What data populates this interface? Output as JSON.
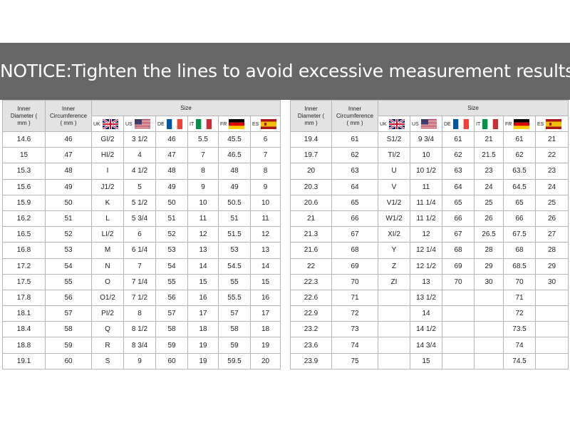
{
  "notice": "NOTICE:Tighten the lines to avoid excessive measurement results",
  "tables": [
    {
      "headers": {
        "inner_diameter": "Inner Diameter ( mm )",
        "inner_circumference": "Inner Circumference ( mm )",
        "size": "Size",
        "countries": [
          "UK",
          "US",
          "DE",
          "IT",
          "FR",
          "ES"
        ]
      },
      "rows": [
        [
          "14.6",
          "46",
          "GI/2",
          "3 1/2",
          "46",
          "5.5",
          "45.5",
          "6"
        ],
        [
          "15",
          "47",
          "HI/2",
          "4",
          "47",
          "7",
          "46.5",
          "7"
        ],
        [
          "15.3",
          "48",
          "I",
          "4 1/2",
          "48",
          "8",
          "48",
          "8"
        ],
        [
          "15.6",
          "49",
          "J1/2",
          "5",
          "49",
          "9",
          "49",
          "9"
        ],
        [
          "15.9",
          "50",
          "K",
          "5 1/2",
          "50",
          "10",
          "50.5",
          "10"
        ],
        [
          "16.2",
          "51",
          "L",
          "5 3/4",
          "51",
          "11",
          "51",
          "11"
        ],
        [
          "16.5",
          "52",
          "LI/2",
          "6",
          "52",
          "12",
          "51.5",
          "12"
        ],
        [
          "16.8",
          "53",
          "M",
          "6 1/4",
          "53",
          "13",
          "53",
          "13"
        ],
        [
          "17.2",
          "54",
          "N",
          "7",
          "54",
          "14",
          "54.5",
          "14"
        ],
        [
          "17.5",
          "55",
          "O",
          "7 1/4",
          "55",
          "15",
          "55",
          "15"
        ],
        [
          "17.8",
          "56",
          "O1/2",
          "7 1/2",
          "56",
          "16",
          "55.5",
          "16"
        ],
        [
          "18.1",
          "57",
          "PI/2",
          "8",
          "57",
          "17",
          "57",
          "17"
        ],
        [
          "18.4",
          "58",
          "Q",
          "8 1/2",
          "58",
          "18",
          "58",
          "18"
        ],
        [
          "18.8",
          "59",
          "R",
          "8 3/4",
          "59",
          "19",
          "59",
          "19"
        ],
        [
          "19.1",
          "60",
          "S",
          "9",
          "60",
          "19",
          "59.5",
          "20"
        ]
      ]
    },
    {
      "headers": {
        "inner_diameter": "Inner Diameter ( mm )",
        "inner_circumference": "Inner Circumference ( mm )",
        "size": "Size",
        "countries": [
          "UK",
          "US",
          "DE",
          "IT",
          "FR",
          "ES"
        ]
      },
      "rows": [
        [
          "19.4",
          "61",
          "S1/2",
          "9 3/4",
          "61",
          "21",
          "61",
          "21"
        ],
        [
          "19.7",
          "62",
          "TI/2",
          "10",
          "62",
          "21.5",
          "62",
          "22"
        ],
        [
          "20",
          "63",
          "U",
          "10 1/2",
          "63",
          "23",
          "63.5",
          "23"
        ],
        [
          "20.3",
          "64",
          "V",
          "11",
          "64",
          "24",
          "64.5",
          "24"
        ],
        [
          "20.6",
          "65",
          "V1/2",
          "11 1/4",
          "65",
          "25",
          "65",
          "25"
        ],
        [
          "21",
          "66",
          "W1/2",
          "11 1/2",
          "66",
          "26",
          "66",
          "26"
        ],
        [
          "21.3",
          "67",
          "XI/2",
          "12",
          "67",
          "26.5",
          "67.5",
          "27"
        ],
        [
          "21.6",
          "68",
          "Y",
          "12 1/4",
          "68",
          "28",
          "68",
          "28"
        ],
        [
          "22",
          "69",
          "Z",
          "12 1/2",
          "69",
          "29",
          "68.5",
          "29"
        ],
        [
          "22.3",
          "70",
          "ZI",
          "13",
          "70",
          "30",
          "70",
          "30"
        ],
        [
          "22.6",
          "71",
          null,
          "13 1/2",
          null,
          null,
          "71",
          null
        ],
        [
          "22.9",
          "72",
          null,
          "14",
          null,
          null,
          "72",
          null
        ],
        [
          "23.2",
          "73",
          null,
          "14 1/2",
          null,
          null,
          "73.5",
          null
        ],
        [
          "23.6",
          "74",
          null,
          "14 3/4",
          null,
          null,
          "74",
          null
        ],
        [
          "23.9",
          "75",
          null,
          "15",
          null,
          null,
          "74.5",
          null
        ]
      ]
    }
  ]
}
